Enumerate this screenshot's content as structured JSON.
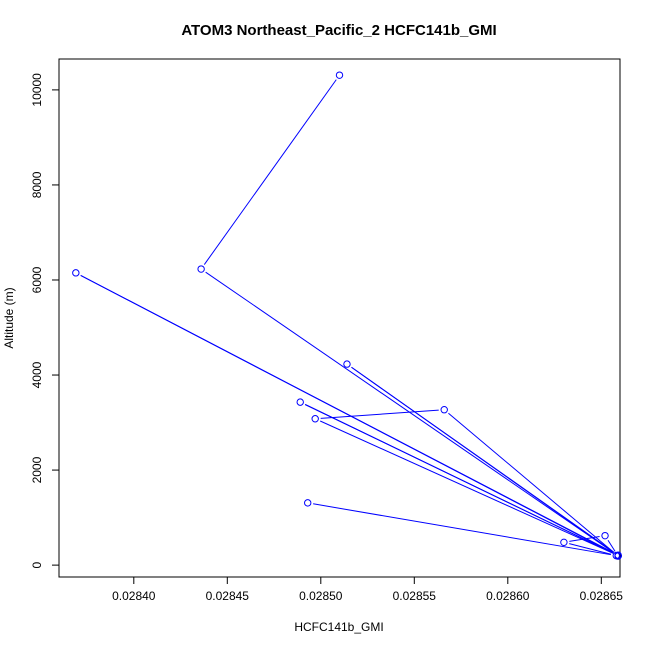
{
  "chart_data": {
    "type": "line",
    "title": "ATOM3 Northeast_Pacific_2 HCFC141b_GMI",
    "xlabel": "HCFC141b_GMI",
    "ylabel": "Altitude (m)",
    "xlim": [
      0.02836,
      0.02866
    ],
    "ylim": [
      -250,
      10650
    ],
    "x_ticks": [
      "0.02840",
      "0.02845",
      "0.02850",
      "0.02855",
      "0.02860",
      "0.02865"
    ],
    "x_tick_values": [
      0.0284,
      0.02845,
      0.0285,
      0.02855,
      0.0286,
      0.02865
    ],
    "y_ticks": [
      "0",
      "2000",
      "4000",
      "6000",
      "8000",
      "10000"
    ],
    "y_tick_values": [
      0,
      2000,
      4000,
      6000,
      8000,
      10000
    ],
    "grid": false,
    "legend": "none",
    "markers": "open-circle",
    "series": [
      {
        "color": "#0000ff",
        "x": [
          0.02851,
          0.028436,
          0.028659,
          0.028489,
          0.028659,
          0.028514,
          0.028659,
          0.028369,
          0.028659,
          0.028497,
          0.028566,
          0.028659,
          0.028652,
          0.02863,
          0.028658,
          0.028493
        ],
        "y": [
          10310,
          6230,
          200,
          3430,
          200,
          4230,
          210,
          6150,
          200,
          3080,
          3270,
          190,
          620,
          480,
          200,
          1310
        ]
      }
    ]
  }
}
